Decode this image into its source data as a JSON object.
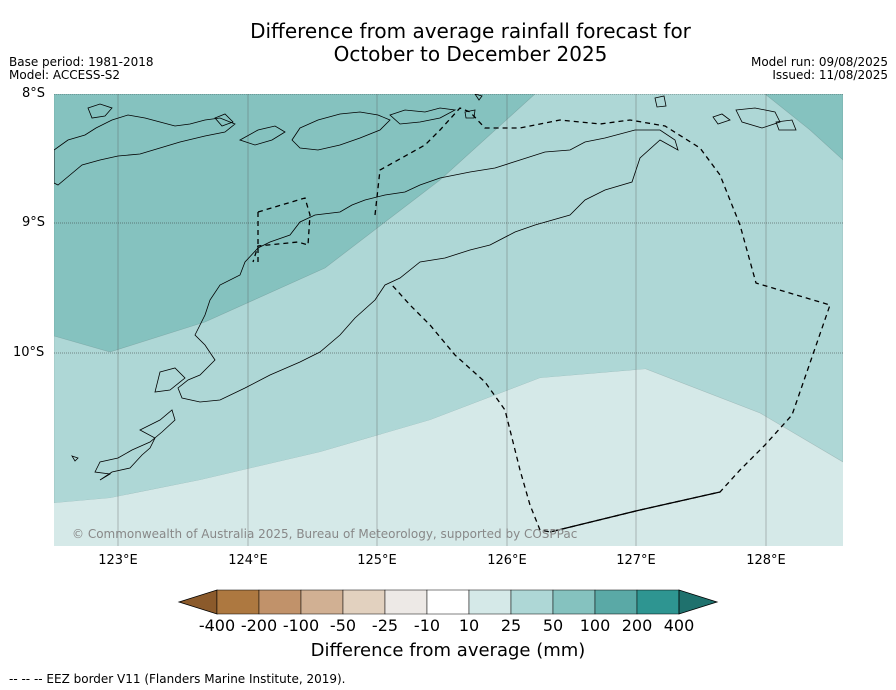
{
  "title": {
    "line1": "Difference from average rainfall forecast for",
    "line2": "October to December 2025"
  },
  "meta": {
    "base_period": "Base period: 1981-2018",
    "model": "Model: ACCESS-S2",
    "model_run": "Model run: 09/08/2025",
    "issued": "Issued: 11/08/2025"
  },
  "map": {
    "lat_labels": [
      "8°S",
      "9°S",
      "10°S"
    ],
    "lon_labels": [
      "123°E",
      "124°E",
      "125°E",
      "126°E",
      "127°E",
      "128°E"
    ],
    "credit": "© Commonwealth of Australia 2025, Bureau of Meteorology, supported by COSPPac",
    "colors": {
      "band_50_100": "#85c2bf",
      "band_25_50": "#aed7d6",
      "band_10_25": "#d5e9e8",
      "coastline": "#000000",
      "eez_border": "#000000"
    }
  },
  "colorbar": {
    "title": "Difference from average (mm)",
    "labels": [
      "-400",
      "-200",
      "-100",
      "-50",
      "-25",
      "-10",
      "10",
      "25",
      "50",
      "100",
      "200",
      "400"
    ],
    "colors": [
      "#8b5a2b",
      "#ad7840",
      "#c1926a",
      "#d1b093",
      "#e2d1bf",
      "#ede9e6",
      "#ffffff",
      "#d5e9e8",
      "#aed7d6",
      "#85c2bf",
      "#5aa9a6",
      "#2e9591",
      "#1f716d"
    ]
  },
  "footer": "--  --  -- EEZ border V11 (Flanders Marine Institute, 2019)."
}
